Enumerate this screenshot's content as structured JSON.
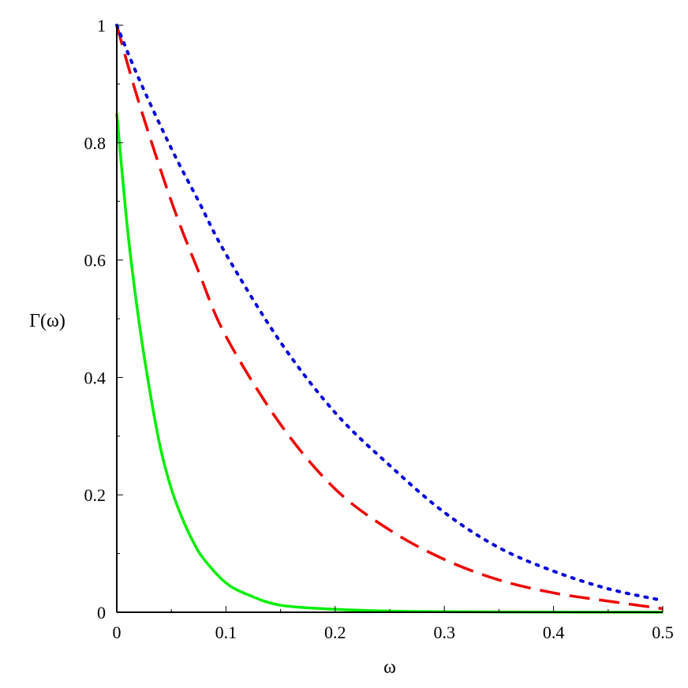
{
  "chart_data": {
    "type": "line",
    "title": "",
    "xlabel": "ω",
    "ylabel": "Γ(ω)",
    "xlim": [
      0,
      0.5
    ],
    "ylim": [
      0,
      1
    ],
    "grid": false,
    "legend": "none",
    "x_ticks": [
      {
        "value": 0,
        "label": "0"
      },
      {
        "value": 0.1,
        "label": "0.1"
      },
      {
        "value": 0.2,
        "label": "0.2"
      },
      {
        "value": 0.3,
        "label": "0.3"
      },
      {
        "value": 0.4,
        "label": "0.4"
      },
      {
        "value": 0.5,
        "label": "0.5"
      }
    ],
    "y_ticks": [
      {
        "value": 0,
        "label": "0"
      },
      {
        "value": 0.2,
        "label": "0.2"
      },
      {
        "value": 0.4,
        "label": "0.4"
      },
      {
        "value": 0.6,
        "label": "0.6"
      },
      {
        "value": 0.8,
        "label": "0.8"
      },
      {
        "value": 1,
        "label": "1"
      }
    ],
    "series": [
      {
        "color": "#00ee00",
        "style": "solid",
        "x": [
          0,
          0.01,
          0.02,
          0.03,
          0.04,
          0.05,
          0.06,
          0.07,
          0.08,
          0.1,
          0.12,
          0.15,
          0.2,
          0.25,
          0.3,
          0.4,
          0.5
        ],
        "values": [
          0.85,
          0.65,
          0.5,
          0.38,
          0.28,
          0.21,
          0.16,
          0.12,
          0.09,
          0.05,
          0.03,
          0.012,
          0.005,
          0.002,
          0.001,
          0.0003,
          0.0001
        ]
      },
      {
        "color": "#ee0000",
        "style": "dashed",
        "x": [
          0,
          0.02,
          0.05,
          0.075,
          0.1,
          0.15,
          0.2,
          0.25,
          0.3,
          0.35,
          0.4,
          0.45,
          0.5
        ],
        "values": [
          1.0,
          0.87,
          0.7,
          0.58,
          0.47,
          0.32,
          0.21,
          0.14,
          0.09,
          0.055,
          0.033,
          0.019,
          0.006
        ]
      },
      {
        "color": "#0000dd",
        "style": "dotted",
        "x": [
          0,
          0.02,
          0.05,
          0.075,
          0.1,
          0.15,
          0.2,
          0.25,
          0.3,
          0.35,
          0.4,
          0.45,
          0.5
        ],
        "values": [
          1.0,
          0.91,
          0.79,
          0.7,
          0.61,
          0.46,
          0.34,
          0.25,
          0.17,
          0.11,
          0.07,
          0.04,
          0.02
        ]
      }
    ]
  }
}
